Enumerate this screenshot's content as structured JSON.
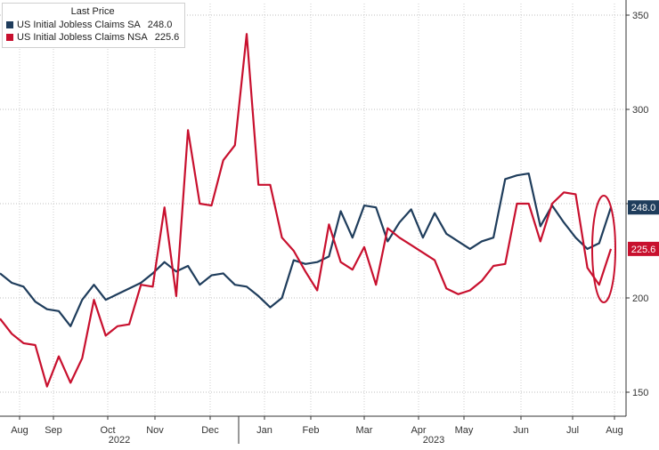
{
  "chart_data": {
    "type": "line",
    "legend": {
      "title": "Last Price",
      "placement": "top-left",
      "entries": [
        {
          "name": "US Initial Jobless Claims SA",
          "value": "248.0",
          "color": "#1f3d5c"
        },
        {
          "name": "US Initial Jobless Claims NSA",
          "value": "225.6",
          "color": "#c8102e"
        }
      ]
    },
    "x_tick_labels": [
      "Aug",
      "Sep",
      "Oct",
      "Nov",
      "Dec",
      "Jan",
      "Feb",
      "Mar",
      "Apr",
      "May",
      "Jun",
      "Jul",
      "Aug"
    ],
    "year_labels": [
      "2022",
      "2023"
    ],
    "y_tick_labels": [
      "350",
      "300",
      "250",
      "200",
      "150"
    ],
    "ylim": [
      140,
      355
    ],
    "grid": true,
    "series": [
      {
        "name": "US Initial Jobless Claims SA",
        "color": "#1f3d5c",
        "last_label": "248.0",
        "values": [
          213,
          208,
          206,
          198,
          194,
          193,
          185,
          199,
          207,
          199,
          202,
          205,
          208,
          213,
          219,
          214,
          217,
          207,
          212,
          213,
          207,
          206,
          201,
          195,
          200,
          220,
          218,
          219,
          222,
          246,
          232,
          249,
          248,
          230,
          240,
          247,
          232,
          245,
          234,
          230,
          226,
          230,
          232,
          263,
          265,
          266,
          238,
          249,
          240,
          232,
          226,
          229,
          248
        ]
      },
      {
        "name": "US Initial Jobless Claims NSA",
        "color": "#c8102e",
        "last_label": "225.6",
        "values": [
          189,
          181,
          176,
          175,
          153,
          169,
          155,
          168,
          199,
          180,
          185,
          186,
          207,
          206,
          248,
          201,
          289,
          250,
          249,
          273,
          281,
          340,
          260,
          260,
          232,
          225,
          214,
          204,
          239,
          219,
          215,
          227,
          207,
          237,
          232,
          228,
          224,
          220,
          205,
          202,
          204,
          209,
          217,
          218,
          250,
          250,
          230,
          250,
          256,
          255,
          216,
          207,
          226
        ]
      }
    ],
    "annotation": {
      "type": "ellipse",
      "color": "#c8102e",
      "description": "circle around latest values"
    }
  }
}
